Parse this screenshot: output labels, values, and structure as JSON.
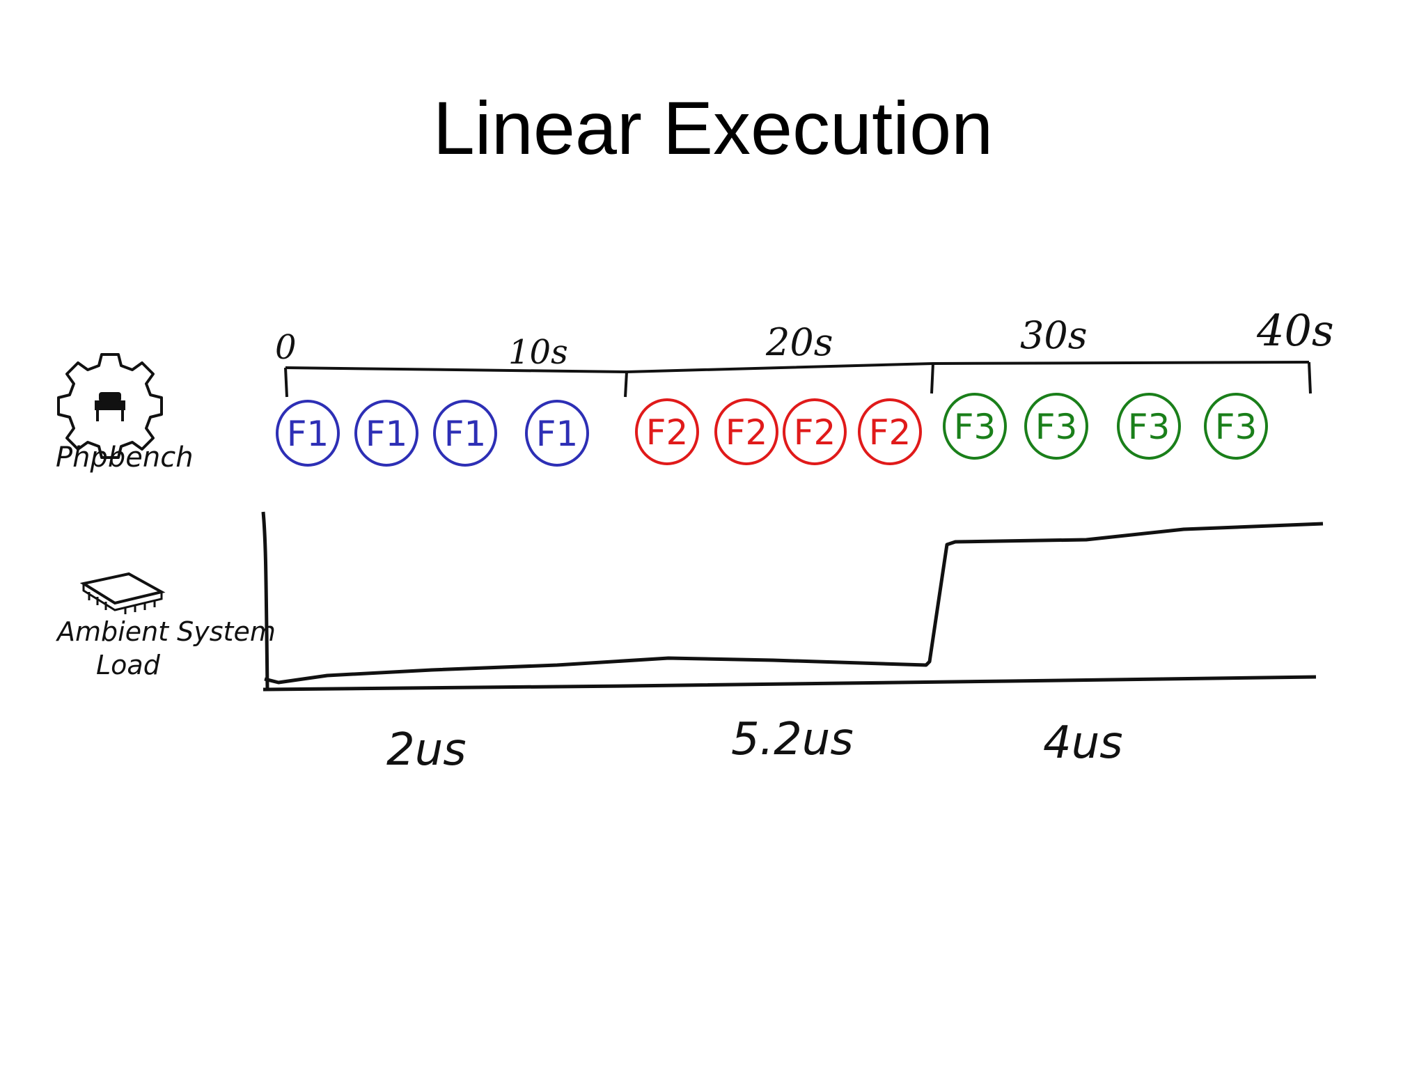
{
  "title": "Linear Execution",
  "labels": {
    "phpbench": "Phpbench",
    "ambient_line1": "Ambient System",
    "ambient_line2": "Load"
  },
  "timeline": {
    "ticks": [
      "0",
      "10s",
      "20s",
      "30s",
      "40s"
    ]
  },
  "tasks": [
    {
      "label": "F1",
      "count": 4,
      "color": "#2d2fb5"
    },
    {
      "label": "F2",
      "count": 4,
      "color": "#e01a1a"
    },
    {
      "label": "F3",
      "count": 4,
      "color": "#1a7f1a"
    }
  ],
  "durations": [
    "2us",
    "5.2us",
    "4us"
  ],
  "icons": {
    "phpbench": "gear-with-bench-icon",
    "ambient": "cpu-chip-icon"
  },
  "colors": {
    "line": "#111111",
    "background": "#ffffff"
  }
}
